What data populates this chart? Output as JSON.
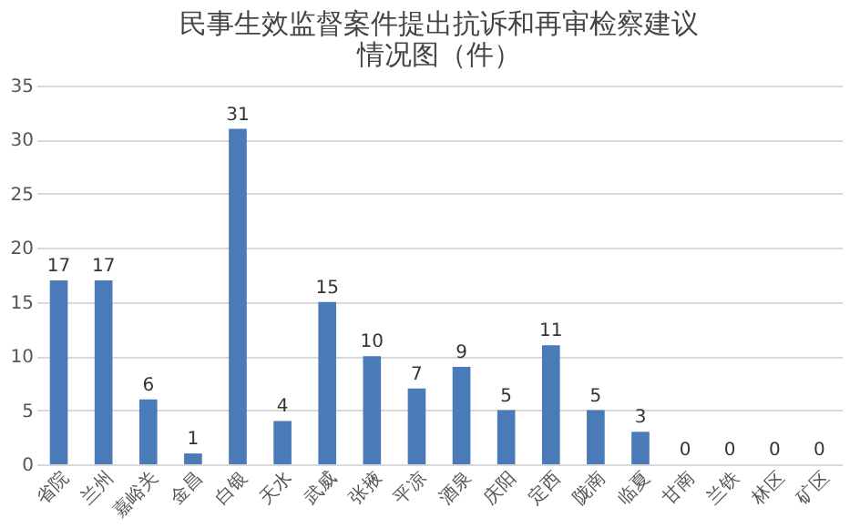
{
  "chart_data": {
    "type": "bar",
    "title": "民事生效监督案件提出抗诉和再审检察建议情况图（件）",
    "categories": [
      "省院",
      "兰州",
      "嘉峪关",
      "金昌",
      "白银",
      "天水",
      "武威",
      "张掖",
      "平凉",
      "酒泉",
      "庆阳",
      "定西",
      "陇南",
      "临夏",
      "甘南",
      "兰铁",
      "林区",
      "矿区"
    ],
    "values": [
      17,
      17,
      6,
      1,
      31,
      4,
      15,
      10,
      7,
      9,
      5,
      11,
      5,
      3,
      0,
      0,
      0,
      0
    ],
    "color": "#4a7ab8",
    "ylim": [
      0,
      35
    ],
    "yticks": [
      0,
      5,
      10,
      15,
      20,
      25,
      30,
      35
    ],
    "grid": "y",
    "data_labels": true
  }
}
